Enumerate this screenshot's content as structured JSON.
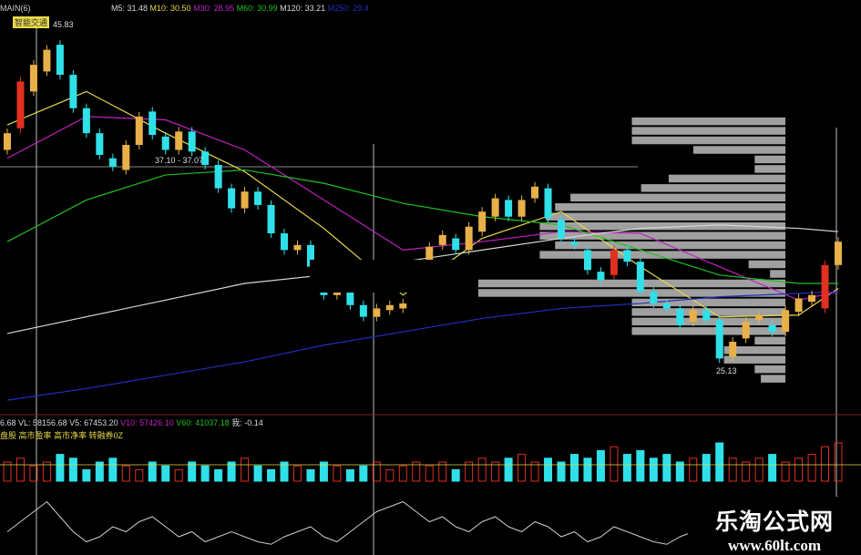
{
  "header": {
    "main_label": "MAIN(6)",
    "badge": "智能交通",
    "ma_legend": [
      {
        "label": "M5: 31.48",
        "color": "#d8d8d8"
      },
      {
        "label": "M10: 30.50",
        "color": "#e8d84a"
      },
      {
        "label": "M30: 28.95",
        "color": "#c020c0"
      },
      {
        "label": "M60: 30.99",
        "color": "#20c020"
      },
      {
        "label": "M120: 33.21",
        "color": "#d8d8d8"
      },
      {
        "label": "M250: 29.4",
        "color": "#2030c0"
      }
    ]
  },
  "volume_header": {
    "items": [
      {
        "label": "6.68",
        "color": "#d8d8d8"
      },
      {
        "label": "VL: 58156.68",
        "color": "#d8d8d8"
      },
      {
        "label": "V5: 67453.20",
        "color": "#d8d8d8"
      },
      {
        "label": "V10: 57426.10",
        "color": "#c020c0"
      },
      {
        "label": "V60: 41037.18",
        "color": "#20c020"
      },
      {
        "label": "我: -0.14",
        "color": "#d8d8d8"
      }
    ],
    "indicator_line": "盘股 高市盈率 高市净率 转融券0Z"
  },
  "watermark": {
    "title": "乐淘公式网",
    "url": "www.60lt.com"
  },
  "colors": {
    "up": "#e8b048",
    "down": "#30e0e8",
    "strong_up": "#e03020",
    "background": "#000000",
    "profile": "#a0a0a0"
  },
  "chart_data": {
    "type": "candlestick",
    "title": "",
    "ylim": [
      24,
      46.5
    ],
    "annotations": {
      "high": "45.83",
      "low": "25.13",
      "range": "37.10 - 37.07"
    },
    "open": [
      38.5,
      39.8,
      42,
      43.2,
      44.8,
      43,
      41,
      39.5,
      38,
      37.3,
      38.8,
      40.8,
      39.3,
      38.5,
      39.6,
      38.4,
      37.6,
      36.2,
      35,
      36,
      35.2,
      33.5,
      32.5,
      32.8,
      31.5,
      29.8,
      30.5,
      29.2,
      28.5,
      28.9,
      29,
      30.8,
      31.5,
      32.8,
      33.2,
      32.5,
      33.6,
      34.5,
      35.5,
      34.5,
      35.6,
      36.2,
      34.3,
      33,
      32.5,
      31.2,
      31,
      32.5,
      31.8,
      30,
      29.3,
      29,
      28.2,
      28.9,
      28.3,
      26.1,
      27.2,
      28.3,
      28,
      27.6,
      28.8,
      29.4,
      29,
      31.6
    ],
    "close": [
      39.5,
      42.6,
      43.6,
      44.5,
      43,
      41,
      39.5,
      38.2,
      37.5,
      38.8,
      40.5,
      39.4,
      38.5,
      39.6,
      38.4,
      37.6,
      36.2,
      35,
      36,
      35.2,
      33.5,
      32.5,
      32.8,
      31.5,
      29.8,
      30.8,
      29.2,
      28.5,
      29,
      29.2,
      29.3,
      31.5,
      32.7,
      33.4,
      32.5,
      33.9,
      34.8,
      35.6,
      34.5,
      35.5,
      36.3,
      34.4,
      33.2,
      32.8,
      31.3,
      30.7,
      32.5,
      31.8,
      30,
      29.3,
      29,
      28,
      28.9,
      28.3,
      26,
      27,
      28.2,
      28.6,
      27.6,
      28.9,
      29.6,
      29.8,
      31.6,
      33
    ],
    "strong_up": [
      1,
      46,
      62
    ],
    "moving_averages": {
      "index": [
        0,
        6,
        12,
        18,
        24,
        30,
        36,
        42,
        48,
        54,
        60,
        63
      ],
      "series": [
        {
          "name": "M10",
          "color": "#e8d84a",
          "values": [
            40,
            42,
            39.5,
            37.2,
            33.8,
            29.8,
            33.2,
            34.8,
            31.5,
            28.5,
            28.6,
            30.2
          ]
        },
        {
          "name": "M30",
          "color": "#c020c0",
          "values": [
            38,
            40.5,
            40.3,
            38.5,
            35.5,
            32.5,
            33,
            33.6,
            33.5,
            31.5,
            29.5,
            30
          ]
        },
        {
          "name": "M60",
          "color": "#20c020",
          "values": [
            33,
            35.5,
            37,
            37.3,
            36.5,
            35.3,
            34.5,
            34,
            32.5,
            31,
            30.5,
            30.5
          ]
        },
        {
          "name": "M120",
          "color": "#d8d8d8",
          "values": [
            27.5,
            28.5,
            29.5,
            30.5,
            31,
            31.8,
            32.5,
            33.2,
            33.8,
            34,
            33.8,
            33.6
          ]
        },
        {
          "name": "M250",
          "color": "#2030c0",
          "values": [
            23.5,
            24.2,
            25,
            25.8,
            26.8,
            27.6,
            28.4,
            29,
            29.3,
            29.7,
            29.9,
            30
          ]
        }
      ]
    },
    "volume_profile": {
      "price_range": [
        24.5,
        40.5
      ],
      "values": [
        0.08,
        0.1,
        0.2,
        0.2,
        0.1,
        0.5,
        0.5,
        0.5,
        0.5,
        1.0,
        1.0,
        0.05,
        0.12,
        0.8,
        0.75,
        0.8,
        0.8,
        0.78,
        0.75,
        0.7,
        0.47,
        0.38,
        0.1,
        0.1,
        0.3,
        0.5,
        0.5,
        0.5
      ]
    },
    "volume": [
      0.5,
      0.6,
      0.4,
      0.5,
      0.7,
      0.6,
      0.3,
      0.5,
      0.6,
      0.4,
      0.3,
      0.5,
      0.4,
      0.3,
      0.5,
      0.4,
      0.3,
      0.5,
      0.6,
      0.4,
      0.3,
      0.5,
      0.4,
      0.3,
      0.5,
      0.4,
      0.3,
      0.4,
      0.5,
      0.3,
      0.4,
      0.5,
      0.4,
      0.5,
      0.3,
      0.5,
      0.6,
      0.5,
      0.6,
      0.7,
      0.5,
      0.6,
      0.5,
      0.7,
      0.6,
      0.8,
      0.9,
      0.7,
      0.8,
      0.6,
      0.7,
      0.5,
      0.6,
      0.7,
      1.0,
      0.6,
      0.5,
      0.6,
      0.7,
      0.5,
      0.6,
      0.7,
      0.9,
      1.0
    ],
    "oscillator": [
      0.3,
      0.5,
      0.7,
      0.9,
      0.6,
      0.3,
      0.1,
      0.2,
      0.4,
      0.3,
      0.5,
      0.6,
      0.4,
      0.2,
      0.3,
      0.1,
      0.2,
      0.3,
      0.2,
      0.1,
      0.05,
      0.2,
      0.3,
      0.4,
      0.2,
      0.1,
      0.3,
      0.5,
      0.7,
      0.8,
      0.9,
      0.7,
      0.5,
      0.6,
      0.4,
      0.3,
      0.5,
      0.6,
      0.4,
      0.3,
      0.5,
      0.4,
      0.2,
      0.3,
      0.1,
      0.2,
      0.4,
      0.3,
      0.2,
      0.1,
      0.05,
      0.2,
      0.3,
      0.1,
      0.2,
      0.3,
      0.4,
      0.5,
      0.6,
      0.7,
      0.6,
      0.8,
      0.9,
      1.0
    ]
  }
}
